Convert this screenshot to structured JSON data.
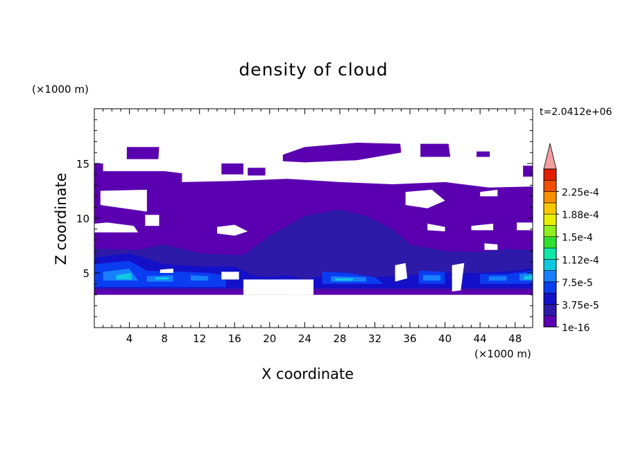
{
  "chart_data": {
    "type": "heatmap",
    "title": "density of cloud",
    "xlabel": "X coordinate",
    "ylabel": "Z coordinate",
    "x_unit": "(×1000 m)",
    "z_unit": "(×1000 m)",
    "time_label": "t=2.0412e+06",
    "xlim": [
      0,
      50
    ],
    "ylim": [
      0,
      20
    ],
    "x_ticks": [
      4,
      8,
      12,
      16,
      20,
      24,
      28,
      32,
      36,
      40,
      44,
      48
    ],
    "y_ticks": [
      5,
      10,
      15
    ],
    "colorbar": {
      "labels": [
        "1e-16",
        "3.75e-5",
        "7.5e-5",
        "1.12e-4",
        "1.5e-4",
        "1.88e-4",
        "2.25e-4"
      ],
      "colors": [
        "#5a00b0",
        "#2d1aa8",
        "#1410c8",
        "#0a3cf0",
        "#1880ff",
        "#10c8e0",
        "#10e8a8",
        "#30e030",
        "#90f020",
        "#e8f000",
        "#f8c800",
        "#f89000",
        "#f05000",
        "#e02000",
        "#f0a0a0"
      ]
    },
    "cloud_regions": [
      {
        "level": "1e-16",
        "color": "#5a00b0",
        "polygons": [
          [
            [
              0,
              15
            ],
            [
              1,
              15
            ],
            [
              1,
              14.3
            ],
            [
              8,
              14.3
            ],
            [
              10,
              14.1
            ],
            [
              10,
              13.3
            ],
            [
              16,
              13.4
            ],
            [
              22,
              13.6
            ],
            [
              28,
              13.3
            ],
            [
              34,
              13.1
            ],
            [
              40,
              13.3
            ],
            [
              45,
              12.8
            ],
            [
              50,
              12.9
            ],
            [
              50,
              3
            ],
            [
              0,
              3
            ]
          ],
          [
            [
              3.7,
              16.5
            ],
            [
              7.4,
              16.5
            ],
            [
              7.3,
              15.4
            ],
            [
              3.7,
              15.4
            ]
          ],
          [
            [
              14.5,
              15
            ],
            [
              17,
              15
            ],
            [
              17,
              14
            ],
            [
              14.5,
              14
            ]
          ],
          [
            [
              17.5,
              14.6
            ],
            [
              19.5,
              14.6
            ],
            [
              19.5,
              13.9
            ],
            [
              17.5,
              13.9
            ]
          ],
          [
            [
              21.5,
              15.8
            ],
            [
              24,
              16.5
            ],
            [
              30,
              16.9
            ],
            [
              34.9,
              16.8
            ],
            [
              35,
              16
            ],
            [
              30,
              15.3
            ],
            [
              24,
              15.1
            ],
            [
              21.5,
              15.2
            ]
          ],
          [
            [
              37.2,
              16.8
            ],
            [
              40.4,
              16.8
            ],
            [
              40.6,
              15.6
            ],
            [
              37.2,
              15.6
            ]
          ],
          [
            [
              43.6,
              16.1
            ],
            [
              45.1,
              16.1
            ],
            [
              45.1,
              15.6
            ],
            [
              43.6,
              15.6
            ]
          ],
          [
            [
              48.9,
              14.8
            ],
            [
              50,
              14.8
            ],
            [
              50,
              13.8
            ],
            [
              48.9,
              13.8
            ]
          ]
        ]
      },
      {
        "level": "3.75e-5",
        "color": "#2d1aa8",
        "polygons": [
          [
            [
              0,
              7.2
            ],
            [
              5,
              7.1
            ],
            [
              8,
              7.6
            ],
            [
              12,
              6.8
            ],
            [
              17,
              6.6
            ],
            [
              20,
              8.4
            ],
            [
              24,
              10.2
            ],
            [
              28,
              10.8
            ],
            [
              31,
              10.2
            ],
            [
              34,
              9
            ],
            [
              36,
              7.6
            ],
            [
              40,
              7
            ],
            [
              44,
              6.9
            ],
            [
              47,
              7.2
            ],
            [
              50,
              7.1
            ],
            [
              50,
              3.5
            ],
            [
              0,
              3.5
            ]
          ]
        ]
      },
      {
        "level": "7.5e-5",
        "color": "#1410c8",
        "polygons": [
          [
            [
              0,
              6.4
            ],
            [
              4,
              6.8
            ],
            [
              8,
              5.8
            ],
            [
              12,
              5.6
            ],
            [
              16,
              5.6
            ],
            [
              18,
              4.8
            ],
            [
              20,
              4.6
            ],
            [
              22,
              4.8
            ],
            [
              24,
              4.4
            ],
            [
              28,
              5.1
            ],
            [
              32,
              4.6
            ],
            [
              36,
              4.8
            ],
            [
              40,
              5
            ],
            [
              44,
              5
            ],
            [
              48,
              5.2
            ],
            [
              50,
              5.4
            ],
            [
              50,
              3.6
            ],
            [
              0,
              3.6
            ]
          ]
        ]
      },
      {
        "level": "1.12e-4",
        "color": "#0a3cf0",
        "polygons": [
          [
            [
              0,
              5.8
            ],
            [
              4,
              6.1
            ],
            [
              6,
              5.2
            ],
            [
              10,
              5.1
            ],
            [
              13,
              5
            ],
            [
              15,
              4.8
            ],
            [
              15,
              3.7
            ],
            [
              0,
              3.7
            ]
          ],
          [
            [
              26,
              5.1
            ],
            [
              29,
              5
            ],
            [
              32,
              4.6
            ],
            [
              33,
              4
            ],
            [
              26,
              4
            ]
          ],
          [
            [
              37,
              5.2
            ],
            [
              40,
              5.1
            ],
            [
              40,
              4
            ],
            [
              37,
              4
            ]
          ],
          [
            [
              44,
              4.9
            ],
            [
              47,
              4.9
            ],
            [
              50,
              5.2
            ],
            [
              50,
              4
            ],
            [
              44,
              4
            ]
          ]
        ]
      },
      {
        "level": "1.5e-4",
        "color": "#1880ff",
        "polygons": [
          [
            [
              1,
              5.1
            ],
            [
              4,
              5.4
            ],
            [
              5,
              4.3
            ],
            [
              1,
              4.3
            ]
          ],
          [
            [
              6,
              4.7
            ],
            [
              9,
              4.8
            ],
            [
              9,
              4.2
            ],
            [
              6,
              4.2
            ]
          ],
          [
            [
              11,
              4.8
            ],
            [
              13,
              4.7
            ],
            [
              13,
              4.3
            ],
            [
              11,
              4.3
            ]
          ],
          [
            [
              27,
              4.7
            ],
            [
              31,
              4.6
            ],
            [
              31,
              4.2
            ],
            [
              27,
              4.2
            ]
          ],
          [
            [
              37.5,
              4.8
            ],
            [
              39.5,
              4.8
            ],
            [
              39.5,
              4.3
            ],
            [
              37.5,
              4.3
            ]
          ],
          [
            [
              45,
              4.7
            ],
            [
              47,
              4.7
            ],
            [
              47,
              4.3
            ],
            [
              45,
              4.3
            ]
          ],
          [
            [
              48.5,
              4.9
            ],
            [
              50,
              5
            ],
            [
              50,
              4.3
            ],
            [
              48.5,
              4.3
            ]
          ]
        ]
      },
      {
        "level": "1.88e-4",
        "color": "#10c8e0",
        "polygons": [
          [
            [
              2.5,
              4.8
            ],
            [
              4.2,
              5
            ],
            [
              4.3,
              4.4
            ],
            [
              2.5,
              4.4
            ]
          ],
          [
            [
              7,
              4.6
            ],
            [
              8.5,
              4.6
            ],
            [
              8.5,
              4.4
            ],
            [
              7,
              4.4
            ]
          ],
          [
            [
              27.5,
              4.5
            ],
            [
              29.5,
              4.5
            ],
            [
              29.5,
              4.3
            ],
            [
              27.5,
              4.3
            ]
          ],
          [
            [
              49,
              4.7
            ],
            [
              50,
              4.8
            ],
            [
              50,
              4.4
            ],
            [
              49,
              4.4
            ]
          ]
        ]
      }
    ],
    "clear_regions": [
      [
        [
          0.7,
          12.5
        ],
        [
          6,
          12.6
        ],
        [
          6,
          10.6
        ],
        [
          0.7,
          11.2
        ]
      ],
      [
        [
          0,
          9.5
        ],
        [
          1.5,
          9.6
        ],
        [
          4.5,
          9.3
        ],
        [
          5,
          8.7
        ],
        [
          0,
          8.7
        ]
      ],
      [
        [
          5.8,
          10.3
        ],
        [
          7.4,
          10.3
        ],
        [
          7.4,
          9.3
        ],
        [
          5.8,
          9.3
        ]
      ],
      [
        [
          14,
          9.2
        ],
        [
          16,
          9.4
        ],
        [
          17.5,
          8.8
        ],
        [
          16,
          8.4
        ],
        [
          14,
          8.6
        ]
      ],
      [
        [
          35.5,
          12.4
        ],
        [
          38.5,
          12.6
        ],
        [
          40,
          11.6
        ],
        [
          38,
          10.9
        ],
        [
          35.5,
          11.2
        ]
      ],
      [
        [
          44,
          12.4
        ],
        [
          46,
          12.6
        ],
        [
          46,
          12
        ],
        [
          44,
          12
        ]
      ],
      [
        [
          38,
          9.5
        ],
        [
          40,
          9.2
        ],
        [
          40,
          8.8
        ],
        [
          38,
          8.9
        ]
      ],
      [
        [
          43,
          9.3
        ],
        [
          45.5,
          9.5
        ],
        [
          45.5,
          8.9
        ],
        [
          43,
          8.9
        ]
      ],
      [
        [
          48.2,
          9.6
        ],
        [
          50,
          9.6
        ],
        [
          50,
          8.9
        ],
        [
          48.2,
          8.9
        ]
      ],
      [
        [
          44.5,
          7.7
        ],
        [
          46,
          7.6
        ],
        [
          46,
          7.1
        ],
        [
          44.5,
          7.1
        ]
      ],
      [
        [
          7.5,
          5.3
        ],
        [
          9,
          5.4
        ],
        [
          9,
          5
        ],
        [
          7.5,
          5
        ]
      ],
      [
        [
          14.5,
          5.1
        ],
        [
          16.5,
          5.1
        ],
        [
          16.5,
          4.4
        ],
        [
          14.5,
          4.4
        ]
      ],
      [
        [
          17,
          4.4
        ],
        [
          25,
          4.4
        ],
        [
          25,
          3
        ],
        [
          17,
          3
        ]
      ],
      [
        [
          22,
          4.4
        ],
        [
          24,
          4.2
        ],
        [
          24,
          3
        ],
        [
          22,
          3
        ]
      ],
      [
        [
          34.3,
          5.7
        ],
        [
          35.5,
          5.9
        ],
        [
          35.7,
          4.5
        ],
        [
          34.3,
          4.2
        ]
      ],
      [
        [
          40.8,
          5.7
        ],
        [
          42.2,
          5.9
        ],
        [
          41.8,
          3.4
        ],
        [
          40.8,
          3.3
        ]
      ]
    ]
  }
}
